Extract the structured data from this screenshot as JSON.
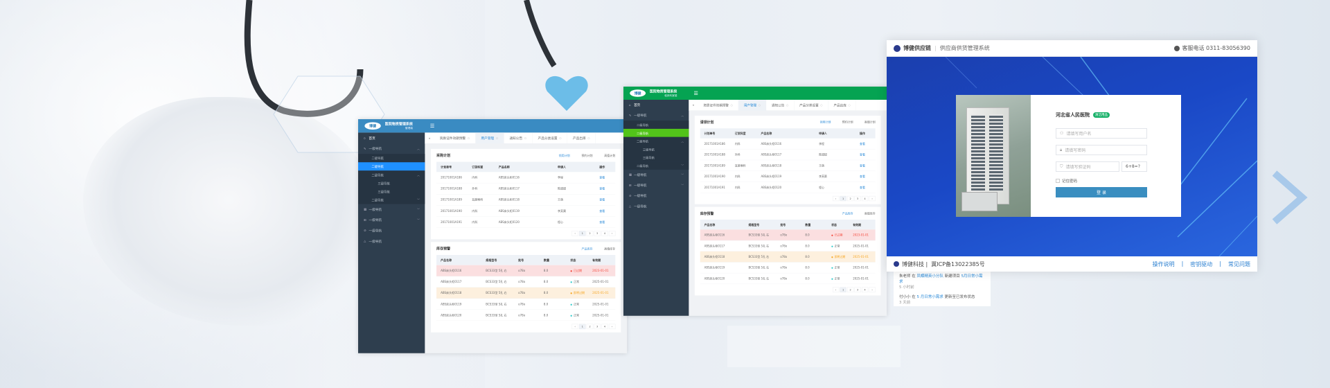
{
  "dashboards": [
    {
      "theme": {
        "header": "#3a8bc2",
        "active": "#1f90ff"
      },
      "app_title": "医院物资管理系统",
      "app_subtitle": "管理端",
      "logo": "博健",
      "menu_icon": "hamburger-icon",
      "sidebar": [
        {
          "label": "首页",
          "icon": "home-icon",
          "level": 1,
          "chevron": ""
        },
        {
          "label": "一级导航",
          "icon": "edit-icon",
          "level": 1,
          "chevron": "up"
        },
        {
          "label": "二级导航",
          "level": 2
        },
        {
          "label": "二级导航",
          "level": 2,
          "active": true
        },
        {
          "label": "二级导航",
          "level": 2,
          "chevron": "up"
        },
        {
          "label": "三级导航",
          "level": 3
        },
        {
          "label": "三级导航",
          "level": 3
        },
        {
          "label": "二级导航",
          "level": 2,
          "chevron": "down"
        },
        {
          "label": "一级导航",
          "icon": "table-icon",
          "level": 1,
          "chevron": "down"
        },
        {
          "label": "一级导航",
          "icon": "grid-icon",
          "level": 1,
          "chevron": "down"
        },
        {
          "label": "一级导航",
          "icon": "check-circle-icon",
          "level": 1
        },
        {
          "label": "一级导航",
          "icon": "warning-icon",
          "level": 1
        }
      ],
      "tabs": [
        "资质证件效期预警",
        "用户管理",
        "通知公告",
        "产品分类设置",
        "产品出库"
      ],
      "active_tab": 1,
      "plan_card": {
        "title": "采购计划",
        "tabs": [
          "领用计划",
          "预约计划",
          "高值计划"
        ],
        "headers": [
          "计划单号",
          "订货科室",
          "产品名称",
          "申请人",
          "操作"
        ],
        "rows": [
          [
            "20171001A186",
            "内科",
            "ABS床头柜0116",
            "李程",
            "查看"
          ],
          [
            "20171001A188",
            "外科",
            "ABS床头柜0117",
            "陈甜甜",
            "查看"
          ],
          [
            "20171001A189",
            "耳鼻喉科",
            "ABS床头柜0118",
            "王萌",
            "查看"
          ],
          [
            "20171001A190",
            "内科",
            "ABS床头柜0119",
            "李芙蕖",
            "查看"
          ],
          [
            "20171001A191",
            "内科",
            "ABS床头柜0120",
            "程心",
            "查看"
          ]
        ]
      },
      "stock_card": {
        "title": "库存预警",
        "tabs": [
          "产品库存",
          "高值库存"
        ],
        "headers": [
          "产品名称",
          "规格型号",
          "批号",
          "数量",
          "状态",
          "有效期"
        ],
        "rows": [
          {
            "cells": [
              "ABS床头柜0116",
              "BCS33型 5孔 右",
              "o78o",
              "8.0",
              "已过期",
              "2023-01-01"
            ],
            "status": "expired"
          },
          {
            "cells": [
              "ABS床头柜0117",
              "BCS33型 5孔 右",
              "o78o",
              "8.0",
              "正常",
              "2025-01-01"
            ],
            "status": "normal"
          },
          {
            "cells": [
              "ABS床头柜0118",
              "BCS33型 5孔 右",
              "o78o",
              "8.0",
              "即将过期",
              "2025-01-01"
            ],
            "status": "expiring"
          },
          {
            "cells": [
              "ABS床头柜0119",
              "BCS33型 5孔 右",
              "o78o",
              "8.0",
              "正常",
              "2025-01-01"
            ],
            "status": "normal"
          },
          {
            "cells": [
              "ABS床头柜0120",
              "BCS33型 5孔 右",
              "o78o",
              "8.0",
              "正常",
              "2025-01-01"
            ],
            "status": "normal"
          }
        ]
      },
      "pagination": {
        "prev": "‹",
        "pages": [
          "1",
          "2",
          "3",
          "4"
        ],
        "next": "›",
        "current": "1"
      }
    },
    {
      "theme": {
        "header": "#05a352",
        "active": "#52c41a"
      },
      "app_title": "医院物资管理系统",
      "app_subtitle": "临床科室端",
      "logo": "博健",
      "menu_icon": "hamburger-icon",
      "sidebar": [
        {
          "label": "首页",
          "icon": "home-icon",
          "level": 1,
          "chevron": ""
        },
        {
          "label": "一级导航",
          "icon": "edit-icon",
          "level": 1,
          "chevron": "up"
        },
        {
          "label": "二级导航",
          "level": 2
        },
        {
          "label": "二级导航",
          "level": 2,
          "active": true
        },
        {
          "label": "二级导航",
          "level": 2,
          "chevron": "up"
        },
        {
          "label": "三级导航",
          "level": 3
        },
        {
          "label": "三级导航",
          "level": 3
        },
        {
          "label": "二级导航",
          "level": 2,
          "chevron": "down"
        },
        {
          "label": "一级导航",
          "icon": "table-icon",
          "level": 1,
          "chevron": "down"
        },
        {
          "label": "一级导航",
          "icon": "grid-icon",
          "level": 1,
          "chevron": "down"
        },
        {
          "label": "一级导航",
          "icon": "check-circle-icon",
          "level": 1
        },
        {
          "label": "一级导航",
          "icon": "warning-icon",
          "level": 1
        }
      ],
      "tabs": [
        "资质证件效期预警",
        "用户管理",
        "通知公告",
        "产品分类设置",
        "产品出库"
      ],
      "active_tab": 1,
      "plan_card": {
        "title": "请领计划",
        "tabs": [
          "领用计划",
          "预约计划",
          "高值计划"
        ],
        "headers": [
          "计划单号",
          "订货科室",
          "产品名称",
          "申请人",
          "操作"
        ],
        "rows": [
          [
            "20171001A186",
            "内科",
            "ABS床头柜0116",
            "李程",
            "查看"
          ],
          [
            "20171001A188",
            "外科",
            "ABS床头柜0117",
            "陈甜甜",
            "查看"
          ],
          [
            "20171001A189",
            "耳鼻喉科",
            "ABS床头柜0118",
            "王萌",
            "查看"
          ],
          [
            "20171001A190",
            "内科",
            "ABS床头柜0119",
            "李芙蕖",
            "查看"
          ],
          [
            "20171001A191",
            "内科",
            "ABS床头柜0120",
            "程心",
            "查看"
          ]
        ]
      },
      "stock_card": {
        "title": "库存预警",
        "tabs": [
          "产品库存",
          "高值库存"
        ],
        "headers": [
          "产品名称",
          "规格型号",
          "批号",
          "数量",
          "状态",
          "有效期"
        ],
        "rows": [
          {
            "cells": [
              "ABS床头柜0116",
              "BCS33型 5孔 右",
              "o78o",
              "8.0",
              "已过期",
              "2023-01-01"
            ],
            "status": "expired"
          },
          {
            "cells": [
              "ABS床头柜0117",
              "BCS33型 5孔 右",
              "o78o",
              "8.0",
              "正常",
              "2025-01-01"
            ],
            "status": "normal"
          },
          {
            "cells": [
              "ABS床头柜0118",
              "BCS33型 5孔 右",
              "o78o",
              "8.0",
              "即将过期",
              "2025-01-01"
            ],
            "status": "expiring"
          },
          {
            "cells": [
              "ABS床头柜0119",
              "BCS33型 5孔 右",
              "o78o",
              "8.0",
              "正常",
              "2025-01-01"
            ],
            "status": "normal"
          },
          {
            "cells": [
              "ABS床头柜0120",
              "BCS33型 5孔 右",
              "o78o",
              "8.0",
              "正常",
              "2025-01-01"
            ],
            "status": "normal"
          }
        ]
      },
      "pagination": {
        "prev": "‹",
        "pages": [
          "1",
          "2",
          "3",
          "4"
        ],
        "next": "›",
        "current": "1"
      }
    }
  ],
  "login": {
    "brand": "博健供应链",
    "system": "供应商供货管理系统",
    "phone_label": "客服电话 0311-83056390",
    "hospital": "河北省人民医院",
    "badge": "清洁用品",
    "username_placeholder": "请填写用户名",
    "password_placeholder": "请填写密码",
    "captcha_placeholder": "请填写验证码",
    "captcha": "6+8=?",
    "remember": "记住密码",
    "submit": "登 录",
    "footer_company": "博健科技 |",
    "footer_icp": "冀ICP备13022385号",
    "footer_links": [
      "操作说明",
      "|",
      "密钥驱动",
      "|",
      "常见问题"
    ],
    "accent": "#3a8ec0"
  },
  "activity_feed": [
    {
      "user": "朱老师",
      "mid": "在",
      "group": "凤蝶精英小分队",
      "action": "新建项目",
      "target": "5月日常小需求",
      "time": "5 小时前"
    },
    {
      "user": "付小小",
      "mid": "在",
      "group": "5 月日常小需求",
      "action": "更新至已发布状态",
      "target": "",
      "time": "3 天前"
    }
  ]
}
